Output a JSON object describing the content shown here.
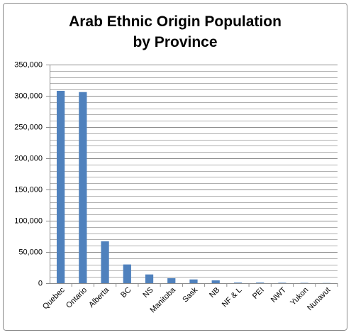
{
  "chart_data": {
    "type": "bar",
    "title": "Arab Ethnic Origin Population by Province",
    "categories": [
      "Quebec",
      "Ontario",
      "Alberta",
      "BC",
      "NS",
      "Manitoba",
      "Sask",
      "NB",
      "NF & L",
      "PEI",
      "NWT",
      "Yukon",
      "Nunavut"
    ],
    "values": [
      308000,
      306000,
      67000,
      30000,
      14000,
      8000,
      6000,
      4500,
      1000,
      1000,
      700,
      500,
      300
    ],
    "color": "#4f81bd",
    "ylim": [
      0,
      350000
    ],
    "yticks": [
      0,
      {
        "value": 50000,
        "label": "50,000"
      },
      {
        "value": 100000,
        "label": "100,000"
      },
      {
        "value": 150000,
        "label": "150,000"
      },
      {
        "value": 200000,
        "label": "200,000"
      },
      {
        "value": 250000,
        "label": "250,000"
      },
      {
        "value": 300000,
        "label": "300,000"
      },
      {
        "value": 350000,
        "label": "350,000"
      }
    ],
    "minor_yticks": [
      10000,
      20000,
      30000,
      40000,
      60000,
      70000,
      80000,
      90000,
      110000,
      120000,
      130000,
      140000,
      160000,
      170000,
      180000,
      190000,
      210000,
      220000,
      230000,
      240000,
      260000,
      270000,
      280000,
      290000,
      310000,
      320000,
      330000,
      340000
    ],
    "grid": true
  }
}
